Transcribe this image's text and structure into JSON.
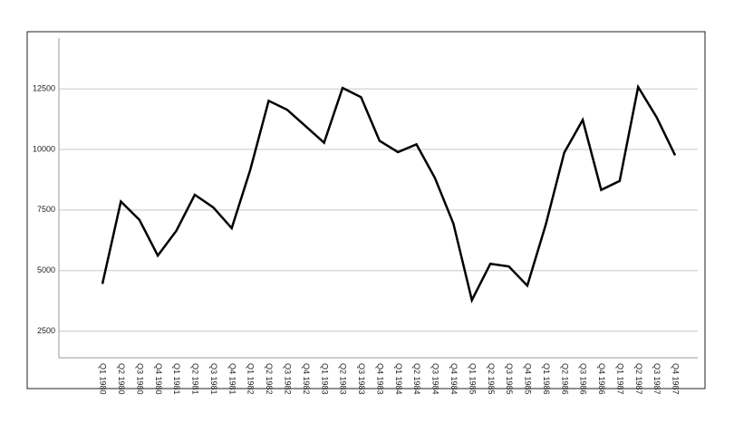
{
  "chart_data": {
    "type": "line",
    "categories": [
      "Q1 1980",
      "Q2 1980",
      "Q3 1980",
      "Q4 1980",
      "Q1 1981",
      "Q2 1981",
      "Q3 1981",
      "Q4 1981",
      "Q1 1982",
      "Q2 1982",
      "Q3 1982",
      "Q4 1982",
      "Q1 1983",
      "Q2 1983",
      "Q3 1983",
      "Q4 1983",
      "Q1 1984",
      "Q2 1984",
      "Q3 1984",
      "Q4 1984",
      "Q1 1985",
      "Q2 1985",
      "Q3 1985",
      "Q4 1985",
      "Q1 1986",
      "Q2 1986",
      "Q3 1986",
      "Q4 1986",
      "Q1 1987",
      "Q2 1987",
      "Q3 1987",
      "Q4 1987"
    ],
    "values": [
      4450,
      7850,
      7100,
      5620,
      6640,
      8130,
      7610,
      6750,
      9150,
      12010,
      11640,
      10960,
      10280,
      12540,
      12160,
      10360,
      9890,
      10210,
      8820,
      6940,
      3780,
      5280,
      5170,
      4380,
      6900,
      9870,
      11220,
      8330,
      8700,
      12580,
      11330,
      9760
    ],
    "color": "#000000",
    "ylim": [
      1400,
      14600
    ],
    "yticks": [
      2500,
      5000,
      7500,
      10000,
      12500
    ],
    "grid": true
  }
}
